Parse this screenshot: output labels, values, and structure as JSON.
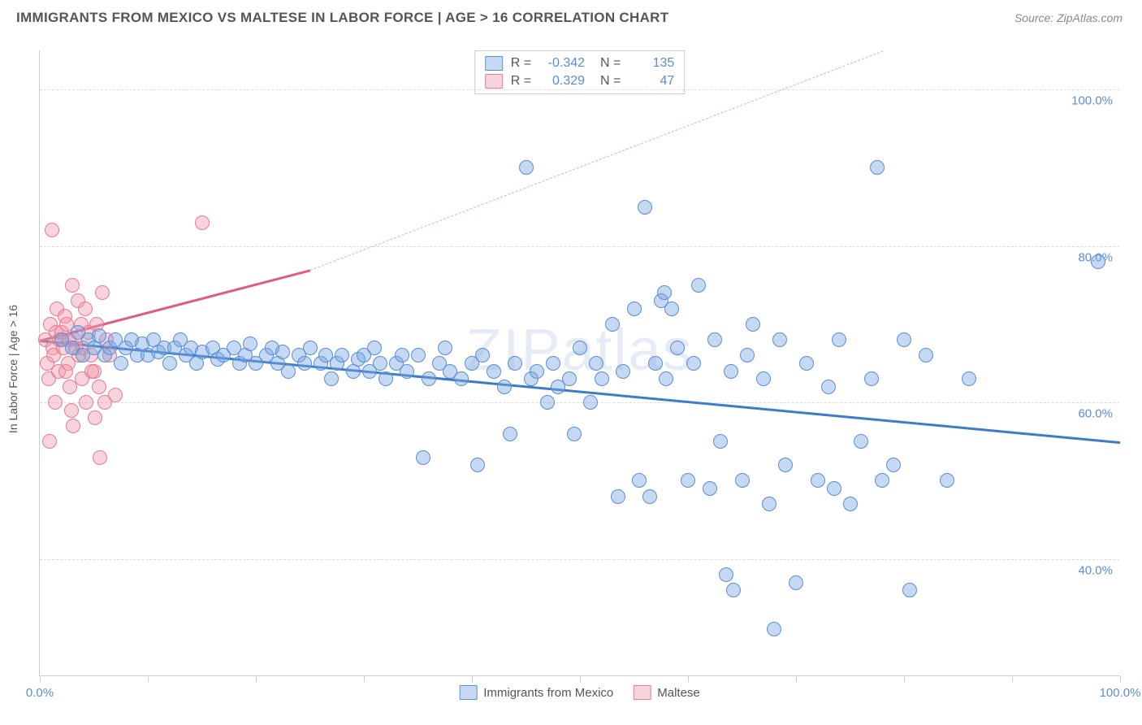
{
  "header": {
    "title": "IMMIGRANTS FROM MEXICO VS MALTESE IN LABOR FORCE | AGE > 16 CORRELATION CHART",
    "source": "Source: ZipAtlas.com"
  },
  "watermark": "ZIPatlas",
  "chart": {
    "type": "scatter",
    "ylabel": "In Labor Force | Age > 16",
    "xlim": [
      0,
      100
    ],
    "ylim": [
      25,
      105
    ],
    "xtick_positions": [
      0,
      10,
      20,
      30,
      40,
      50,
      60,
      70,
      80,
      90,
      100
    ],
    "xtick_labels": {
      "0": "0.0%",
      "100": "100.0%"
    },
    "ytick_values": [
      40,
      60,
      80,
      100
    ],
    "ytick_labels": [
      "40.0%",
      "60.0%",
      "80.0%",
      "100.0%"
    ],
    "background_color": "#ffffff",
    "grid_color": "#dddddd",
    "axis_color": "#cccccc",
    "tick_label_color": "#5b8dd6",
    "marker_radius": 9,
    "series": {
      "a": {
        "name": "Immigrants from Mexico",
        "fill": "rgba(120,165,225,0.42)",
        "stroke": "#5b8dd6",
        "r": "-0.342",
        "n": "135",
        "trend": {
          "x1": 0,
          "y1": 68,
          "x2": 100,
          "y2": 55,
          "color": "#3d7cc9",
          "width": 2.5,
          "dash": false
        },
        "points": [
          [
            2,
            68
          ],
          [
            3,
            67
          ],
          [
            3.5,
            69
          ],
          [
            4,
            66
          ],
          [
            4.5,
            68
          ],
          [
            5,
            67
          ],
          [
            5.5,
            68.5
          ],
          [
            6,
            66
          ],
          [
            6.5,
            67
          ],
          [
            7,
            68
          ],
          [
            7.5,
            65
          ],
          [
            8,
            67
          ],
          [
            8.5,
            68
          ],
          [
            9,
            66
          ],
          [
            9.5,
            67.5
          ],
          [
            10,
            66
          ],
          [
            10.5,
            68
          ],
          [
            11,
            66.5
          ],
          [
            11.5,
            67
          ],
          [
            12,
            65
          ],
          [
            12.5,
            67
          ],
          [
            13,
            68
          ],
          [
            13.5,
            66
          ],
          [
            14,
            67
          ],
          [
            14.5,
            65
          ],
          [
            15,
            66.5
          ],
          [
            16,
            67
          ],
          [
            16.5,
            65.5
          ],
          [
            17,
            66
          ],
          [
            18,
            67
          ],
          [
            18.5,
            65
          ],
          [
            19,
            66
          ],
          [
            19.5,
            67.5
          ],
          [
            20,
            65
          ],
          [
            21,
            66
          ],
          [
            21.5,
            67
          ],
          [
            22,
            65
          ],
          [
            22.5,
            66.5
          ],
          [
            23,
            64
          ],
          [
            24,
            66
          ],
          [
            24.5,
            65
          ],
          [
            25,
            67
          ],
          [
            26,
            65
          ],
          [
            26.5,
            66
          ],
          [
            27,
            63
          ],
          [
            27.5,
            65
          ],
          [
            28,
            66
          ],
          [
            29,
            64
          ],
          [
            29.5,
            65.5
          ],
          [
            30,
            66
          ],
          [
            30.5,
            64
          ],
          [
            31,
            67
          ],
          [
            31.5,
            65
          ],
          [
            32,
            63
          ],
          [
            33,
            65
          ],
          [
            33.5,
            66
          ],
          [
            34,
            64
          ],
          [
            35,
            66
          ],
          [
            35.5,
            53
          ],
          [
            36,
            63
          ],
          [
            37,
            65
          ],
          [
            37.5,
            67
          ],
          [
            38,
            64
          ],
          [
            39,
            63
          ],
          [
            40,
            65
          ],
          [
            40.5,
            52
          ],
          [
            41,
            66
          ],
          [
            42,
            64
          ],
          [
            43,
            62
          ],
          [
            43.5,
            56
          ],
          [
            44,
            65
          ],
          [
            45,
            90
          ],
          [
            45.5,
            63
          ],
          [
            46,
            64
          ],
          [
            47,
            60
          ],
          [
            47.5,
            65
          ],
          [
            48,
            62
          ],
          [
            49,
            63
          ],
          [
            49.5,
            56
          ],
          [
            50,
            67
          ],
          [
            51,
            60
          ],
          [
            51.5,
            65
          ],
          [
            52,
            63
          ],
          [
            53,
            70
          ],
          [
            53.5,
            48
          ],
          [
            54,
            64
          ],
          [
            55,
            72
          ],
          [
            55.5,
            50
          ],
          [
            56,
            85
          ],
          [
            56.5,
            48
          ],
          [
            57,
            65
          ],
          [
            57.5,
            73
          ],
          [
            57.8,
            74
          ],
          [
            58,
            63
          ],
          [
            58.5,
            72
          ],
          [
            59,
            67
          ],
          [
            60,
            50
          ],
          [
            60.5,
            65
          ],
          [
            61,
            75
          ],
          [
            62,
            49
          ],
          [
            62.5,
            68
          ],
          [
            63,
            55
          ],
          [
            63.5,
            38
          ],
          [
            64,
            64
          ],
          [
            64.2,
            36
          ],
          [
            65,
            50
          ],
          [
            65.5,
            66
          ],
          [
            66,
            70
          ],
          [
            67,
            63
          ],
          [
            67.5,
            47
          ],
          [
            68,
            31
          ],
          [
            68.5,
            68
          ],
          [
            69,
            52
          ],
          [
            70,
            37
          ],
          [
            71,
            65
          ],
          [
            72,
            50
          ],
          [
            73,
            62
          ],
          [
            73.5,
            49
          ],
          [
            74,
            68
          ],
          [
            75,
            47
          ],
          [
            76,
            55
          ],
          [
            77,
            63
          ],
          [
            77.5,
            90
          ],
          [
            78,
            50
          ],
          [
            79,
            52
          ],
          [
            80,
            68
          ],
          [
            80.5,
            36
          ],
          [
            82,
            66
          ],
          [
            84,
            50
          ],
          [
            86,
            63
          ],
          [
            98,
            78
          ]
        ]
      },
      "b": {
        "name": "Maltese",
        "fill": "rgba(240,150,170,0.42)",
        "stroke": "#e77a95",
        "r": "0.329",
        "n": "47",
        "trend_solid": {
          "x1": 0,
          "y1": 68,
          "x2": 25,
          "y2": 77,
          "color": "#e05b7d",
          "width": 2.5
        },
        "trend_dash": {
          "x1": 25,
          "y1": 77,
          "x2": 78,
          "y2": 105,
          "color": "#f4a6b8",
          "width": 1.6
        },
        "points": [
          [
            0.5,
            68
          ],
          [
            0.7,
            65
          ],
          [
            0.8,
            63
          ],
          [
            1,
            70
          ],
          [
            1.2,
            67
          ],
          [
            1.3,
            66
          ],
          [
            1.5,
            69
          ],
          [
            1.6,
            72
          ],
          [
            1.7,
            64
          ],
          [
            1.8,
            68
          ],
          [
            2,
            69
          ],
          [
            2.2,
            67
          ],
          [
            2.3,
            71
          ],
          [
            2.5,
            70
          ],
          [
            2.6,
            65
          ],
          [
            2.7,
            68
          ],
          [
            2.8,
            62
          ],
          [
            3,
            75
          ],
          [
            3.2,
            68
          ],
          [
            3.3,
            67
          ],
          [
            3.5,
            73
          ],
          [
            3.6,
            66
          ],
          [
            3.8,
            70
          ],
          [
            4,
            67
          ],
          [
            4.2,
            72
          ],
          [
            4.5,
            69
          ],
          [
            4.7,
            66
          ],
          [
            5,
            64
          ],
          [
            5.3,
            70
          ],
          [
            5.5,
            62
          ],
          [
            5.8,
            74
          ],
          [
            6,
            60
          ],
          [
            6.2,
            68
          ],
          [
            6.5,
            66
          ],
          [
            7,
            61
          ],
          [
            1.1,
            82
          ],
          [
            4.3,
            60
          ],
          [
            2.9,
            59
          ],
          [
            3.9,
            63
          ],
          [
            5.1,
            58
          ],
          [
            0.9,
            55
          ],
          [
            5.6,
            53
          ],
          [
            3.1,
            57
          ],
          [
            15,
            83
          ],
          [
            2.4,
            64
          ],
          [
            1.4,
            60
          ],
          [
            4.8,
            64
          ]
        ]
      }
    }
  },
  "legend_bottom": {
    "items": [
      {
        "swatch_fill": "rgba(120,165,225,0.42)",
        "swatch_stroke": "#5b8dd6",
        "label": "Immigrants from Mexico"
      },
      {
        "swatch_fill": "rgba(240,150,170,0.42)",
        "swatch_stroke": "#e77a95",
        "label": "Maltese"
      }
    ]
  }
}
